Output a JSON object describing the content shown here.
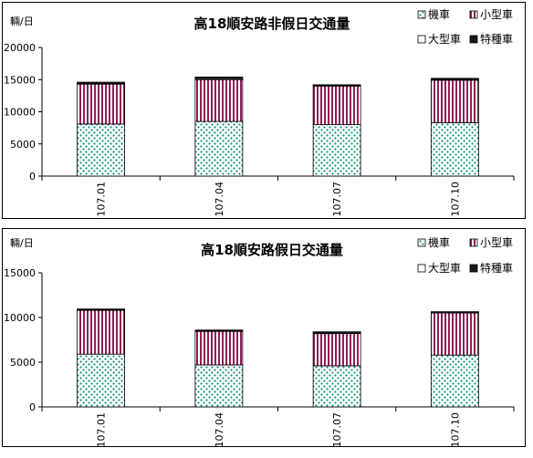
{
  "chart_data": [
    {
      "type": "bar",
      "stacked": true,
      "title": "高18順安路非假日交通量",
      "ylabel": "輛/日",
      "categories": [
        "107.01",
        "107.04",
        "107.07",
        "107.10"
      ],
      "ylim": [
        0,
        20000
      ],
      "yticks": [
        "0",
        "5000",
        "10000",
        "15000",
        "20000"
      ],
      "legend_position": "top-right",
      "series": [
        {
          "name": "機車",
          "values": [
            8100,
            8500,
            8000,
            8300
          ]
        },
        {
          "name": "小型車",
          "values": [
            6200,
            6500,
            6000,
            6600
          ]
        },
        {
          "name": "大型車",
          "values": [
            100,
            150,
            100,
            120
          ]
        },
        {
          "name": "特種車",
          "values": [
            200,
            250,
            100,
            180
          ]
        }
      ]
    },
    {
      "type": "bar",
      "stacked": true,
      "title": "高18順安路假日交通量",
      "ylabel": "輛/日",
      "categories": [
        "107.01",
        "107.04",
        "107.07",
        "107.10"
      ],
      "ylim": [
        0,
        15000
      ],
      "yticks": [
        "0",
        "5000",
        "10000",
        "15000"
      ],
      "legend_position": "top-right",
      "series": [
        {
          "name": "機車",
          "values": [
            5900,
            4700,
            4600,
            5800
          ]
        },
        {
          "name": "小型車",
          "values": [
            4900,
            3750,
            3600,
            4700
          ]
        },
        {
          "name": "大型車",
          "values": [
            50,
            50,
            50,
            40
          ]
        },
        {
          "name": "特種車",
          "values": [
            100,
            100,
            150,
            110
          ]
        }
      ]
    }
  ],
  "colors": {
    "motorcycle_dots": "#0f8c7d",
    "small_car_stripes": "#8e2057",
    "special_vehicle": "#1a1a1a"
  }
}
